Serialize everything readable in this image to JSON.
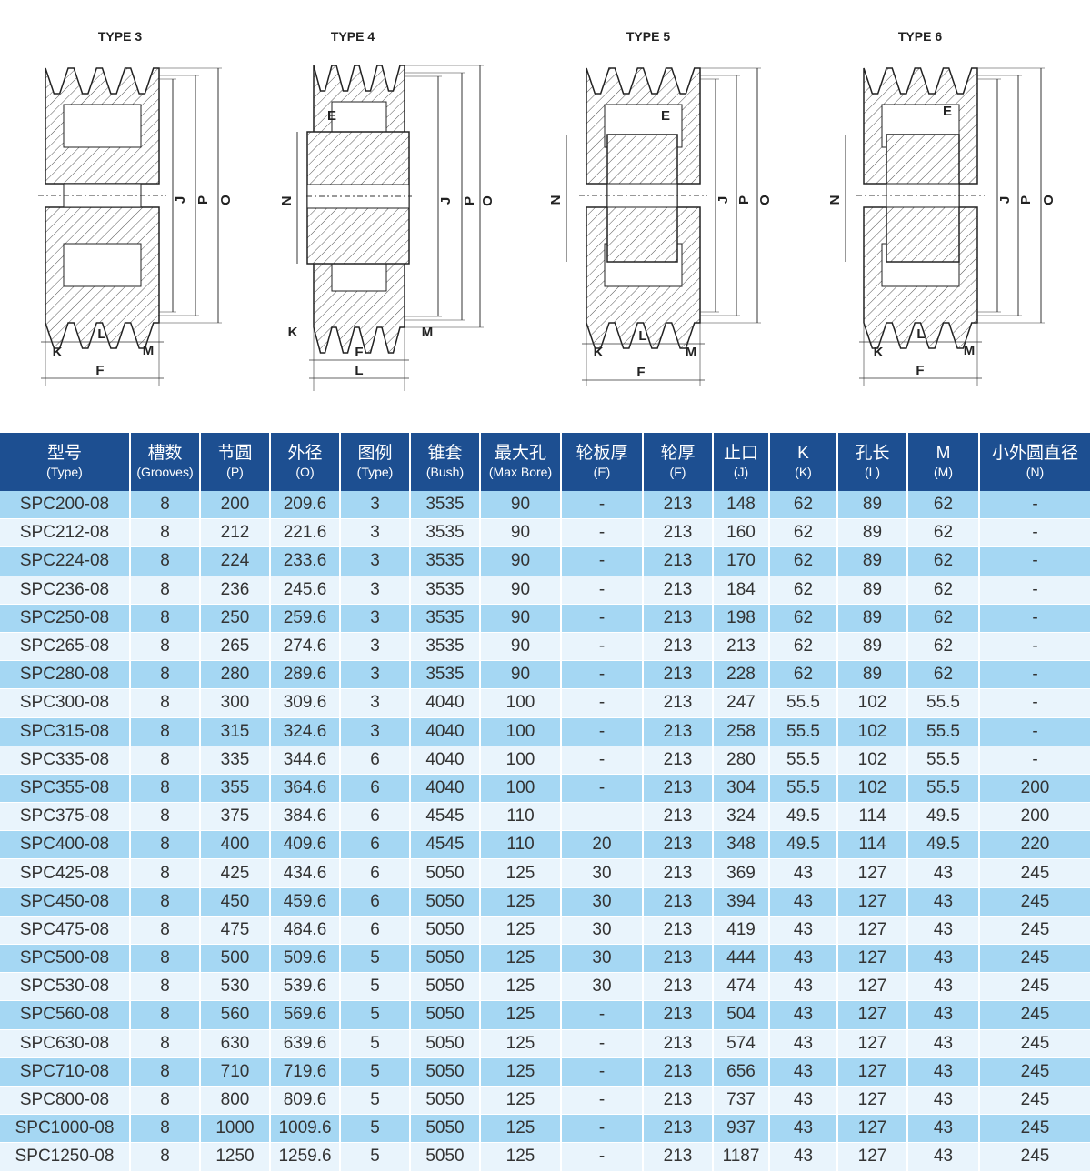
{
  "diagrams": [
    {
      "title": "TYPE 3",
      "labels": {
        "J": "J",
        "P": "P",
        "O": "O",
        "K": "K",
        "L": "L",
        "M": "M",
        "F": "F"
      }
    },
    {
      "title": "TYPE 4",
      "labels": {
        "E": "E",
        "N": "N",
        "J": "J",
        "P": "P",
        "O": "O",
        "K": "K",
        "F": "F",
        "L": "L",
        "M": "M"
      }
    },
    {
      "title": "TYPE 5",
      "labels": {
        "E": "E",
        "N": "N",
        "J": "J",
        "P": "P",
        "O": "O",
        "K": "K",
        "L": "L",
        "M": "M",
        "F": "F"
      }
    },
    {
      "title": "TYPE 6",
      "labels": {
        "E": "E",
        "N": "N",
        "J": "J",
        "P": "P",
        "O": "O",
        "K": "K",
        "L": "L",
        "M": "M",
        "F": "F"
      }
    }
  ],
  "colors": {
    "header": "#1d4f91",
    "row_dark": "#a5d7f3",
    "row_light": "#e9f4fc"
  },
  "table": {
    "headers": [
      {
        "zh": "型号",
        "en": "(Type)"
      },
      {
        "zh": "槽数",
        "en": "(Grooves)"
      },
      {
        "zh": "节圆",
        "en": "(P)"
      },
      {
        "zh": "外径",
        "en": "(O)"
      },
      {
        "zh": "图例",
        "en": "(Type)"
      },
      {
        "zh": "锥套",
        "en": "(Bush)"
      },
      {
        "zh": "最大孔",
        "en": "(Max Bore)"
      },
      {
        "zh": "轮板厚",
        "en": "(E)"
      },
      {
        "zh": "轮厚",
        "en": "(F)"
      },
      {
        "zh": "止口",
        "en": "(J)"
      },
      {
        "zh": "K",
        "en": "(K)"
      },
      {
        "zh": "孔长",
        "en": "(L)"
      },
      {
        "zh": "M",
        "en": "(M)"
      },
      {
        "zh": "小外圆直径",
        "en": "(N)"
      }
    ],
    "rows": [
      [
        "SPC200-08",
        "8",
        "200",
        "209.6",
        "3",
        "3535",
        "90",
        "-",
        "213",
        "148",
        "62",
        "89",
        "62",
        "-"
      ],
      [
        "SPC212-08",
        "8",
        "212",
        "221.6",
        "3",
        "3535",
        "90",
        "-",
        "213",
        "160",
        "62",
        "89",
        "62",
        "-"
      ],
      [
        "SPC224-08",
        "8",
        "224",
        "233.6",
        "3",
        "3535",
        "90",
        "-",
        "213",
        "170",
        "62",
        "89",
        "62",
        "-"
      ],
      [
        "SPC236-08",
        "8",
        "236",
        "245.6",
        "3",
        "3535",
        "90",
        "-",
        "213",
        "184",
        "62",
        "89",
        "62",
        "-"
      ],
      [
        "SPC250-08",
        "8",
        "250",
        "259.6",
        "3",
        "3535",
        "90",
        "-",
        "213",
        "198",
        "62",
        "89",
        "62",
        "-"
      ],
      [
        "SPC265-08",
        "8",
        "265",
        "274.6",
        "3",
        "3535",
        "90",
        "-",
        "213",
        "213",
        "62",
        "89",
        "62",
        "-"
      ],
      [
        "SPC280-08",
        "8",
        "280",
        "289.6",
        "3",
        "3535",
        "90",
        "-",
        "213",
        "228",
        "62",
        "89",
        "62",
        "-"
      ],
      [
        "SPC300-08",
        "8",
        "300",
        "309.6",
        "3",
        "4040",
        "100",
        "-",
        "213",
        "247",
        "55.5",
        "102",
        "55.5",
        "-"
      ],
      [
        "SPC315-08",
        "8",
        "315",
        "324.6",
        "3",
        "4040",
        "100",
        "-",
        "213",
        "258",
        "55.5",
        "102",
        "55.5",
        "-"
      ],
      [
        "SPC335-08",
        "8",
        "335",
        "344.6",
        "6",
        "4040",
        "100",
        "-",
        "213",
        "280",
        "55.5",
        "102",
        "55.5",
        "-"
      ],
      [
        "SPC355-08",
        "8",
        "355",
        "364.6",
        "6",
        "4040",
        "100",
        "-",
        "213",
        "304",
        "55.5",
        "102",
        "55.5",
        "200"
      ],
      [
        "SPC375-08",
        "8",
        "375",
        "384.6",
        "6",
        "4545",
        "110",
        "",
        "213",
        "324",
        "49.5",
        "114",
        "49.5",
        "200"
      ],
      [
        "SPC400-08",
        "8",
        "400",
        "409.6",
        "6",
        "4545",
        "110",
        "20",
        "213",
        "348",
        "49.5",
        "114",
        "49.5",
        "220"
      ],
      [
        "SPC425-08",
        "8",
        "425",
        "434.6",
        "6",
        "5050",
        "125",
        "30",
        "213",
        "369",
        "43",
        "127",
        "43",
        "245"
      ],
      [
        "SPC450-08",
        "8",
        "450",
        "459.6",
        "6",
        "5050",
        "125",
        "30",
        "213",
        "394",
        "43",
        "127",
        "43",
        "245"
      ],
      [
        "SPC475-08",
        "8",
        "475",
        "484.6",
        "6",
        "5050",
        "125",
        "30",
        "213",
        "419",
        "43",
        "127",
        "43",
        "245"
      ],
      [
        "SPC500-08",
        "8",
        "500",
        "509.6",
        "5",
        "5050",
        "125",
        "30",
        "213",
        "444",
        "43",
        "127",
        "43",
        "245"
      ],
      [
        "SPC530-08",
        "8",
        "530",
        "539.6",
        "5",
        "5050",
        "125",
        "30",
        "213",
        "474",
        "43",
        "127",
        "43",
        "245"
      ],
      [
        "SPC560-08",
        "8",
        "560",
        "569.6",
        "5",
        "5050",
        "125",
        "-",
        "213",
        "504",
        "43",
        "127",
        "43",
        "245"
      ],
      [
        "SPC630-08",
        "8",
        "630",
        "639.6",
        "5",
        "5050",
        "125",
        "-",
        "213",
        "574",
        "43",
        "127",
        "43",
        "245"
      ],
      [
        "SPC710-08",
        "8",
        "710",
        "719.6",
        "5",
        "5050",
        "125",
        "-",
        "213",
        "656",
        "43",
        "127",
        "43",
        "245"
      ],
      [
        "SPC800-08",
        "8",
        "800",
        "809.6",
        "5",
        "5050",
        "125",
        "-",
        "213",
        "737",
        "43",
        "127",
        "43",
        "245"
      ],
      [
        "SPC1000-08",
        "8",
        "1000",
        "1009.6",
        "5",
        "5050",
        "125",
        "-",
        "213",
        "937",
        "43",
        "127",
        "43",
        "245"
      ],
      [
        "SPC1250-08",
        "8",
        "1250",
        "1259.6",
        "5",
        "5050",
        "125",
        "-",
        "213",
        "1187",
        "43",
        "127",
        "43",
        "245"
      ]
    ]
  }
}
